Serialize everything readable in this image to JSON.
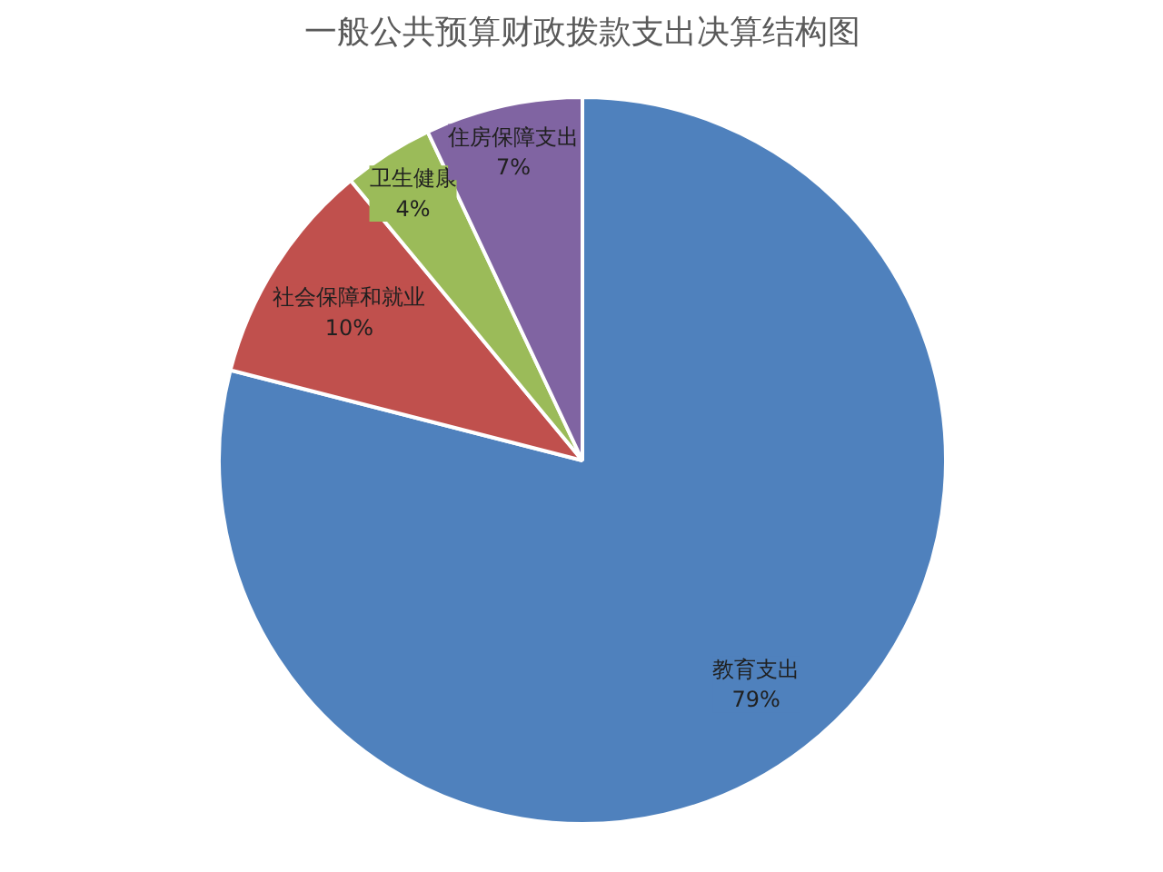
{
  "chart_data": {
    "type": "pie",
    "title": "一般公共预算财政拨款支出决算结构图",
    "categories": [
      "教育支出",
      "社会保障和就业",
      "卫生健康",
      "住房保障支出"
    ],
    "values": [
      79,
      10,
      4,
      7
    ],
    "value_labels": [
      "79%",
      "10%",
      "4%",
      "7%"
    ],
    "colors": [
      "#4f81bd",
      "#c0504d",
      "#9bbb59",
      "#8064a2"
    ],
    "legend": false
  }
}
